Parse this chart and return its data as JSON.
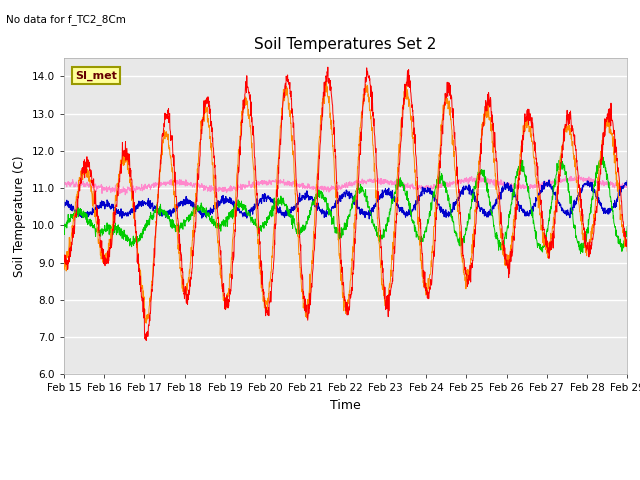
{
  "title": "Soil Temperatures Set 2",
  "subtitle": "No data for f_TC2_8Cm",
  "xlabel": "Time",
  "ylabel": "Soil Temperature (C)",
  "ylim": [
    6.0,
    14.5
  ],
  "yticks": [
    6.0,
    7.0,
    8.0,
    9.0,
    10.0,
    11.0,
    12.0,
    13.0,
    14.0
  ],
  "bg_color": "#e8e8e8",
  "fig_color": "#ffffff",
  "series_colors": {
    "TC2_2Cm": "#ff0000",
    "TC2_4Cm": "#ff8800",
    "TC2_16Cm": "#00cc00",
    "TC2_32Cm": "#0000cc",
    "TC2_50Cm": "#ff88cc"
  },
  "annotation_text": "SI_met",
  "annotation_box_color": "#ffff99",
  "annotation_border_color": "#999900"
}
